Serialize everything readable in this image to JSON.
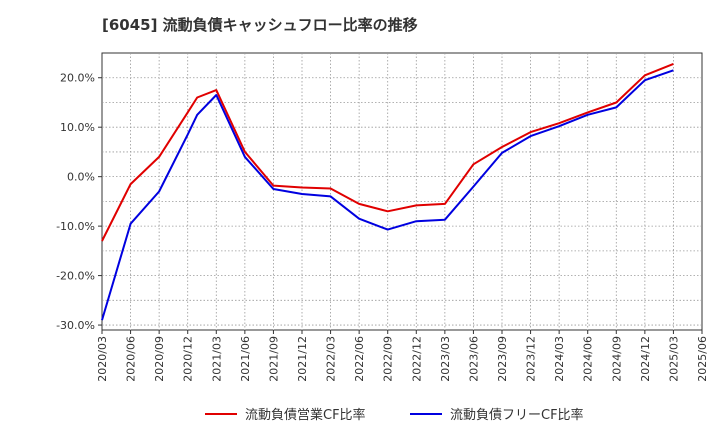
{
  "chart_data": {
    "type": "line",
    "title": "[6045]  流動負債キャッシュフロー比率の推移",
    "xlabel": "",
    "ylabel": "",
    "ylim": [
      -31,
      25
    ],
    "yticks": [
      -30,
      -20,
      -10,
      0,
      10,
      20
    ],
    "ytick_labels": [
      "-30.0%",
      "-20.0%",
      "-10.0%",
      "0.0%",
      "10.0%",
      "20.0%"
    ],
    "x_tick_labels": [
      "2020/03",
      "2020/06",
      "2020/09",
      "2020/12",
      "2021/03",
      "2021/06",
      "2021/09",
      "2021/12",
      "2022/03",
      "2022/06",
      "2022/09",
      "2022/12",
      "2023/03",
      "2023/06",
      "2023/09",
      "2023/12",
      "2024/03",
      "2024/06",
      "2024/09",
      "2024/12",
      "2025/03",
      "2025/06"
    ],
    "grid": true,
    "legend_position": "bottom",
    "x": [
      "2020/03",
      "2020/06",
      "2020/09",
      "2020/12",
      "2021/01",
      "2021/03",
      "2021/06",
      "2021/09",
      "2021/12",
      "2022/03",
      "2022/06",
      "2022/09",
      "2022/12",
      "2023/03",
      "2023/06",
      "2023/09",
      "2023/12",
      "2024/03",
      "2024/06",
      "2024/09",
      "2024/12",
      "2025/03"
    ],
    "series": [
      {
        "name": "流動負債営業CF比率",
        "color": "#e00000",
        "values": [
          -13.0,
          -1.5,
          4.0,
          13.0,
          16.0,
          17.5,
          5.0,
          -1.8,
          -2.2,
          -2.4,
          -5.5,
          -7.0,
          -5.8,
          -5.5,
          2.5,
          6.0,
          9.0,
          10.8,
          13.0,
          15.0,
          20.5,
          22.8
        ]
      },
      {
        "name": "流動負債フリーCF比率",
        "color": "#0000e0",
        "values": [
          -29.0,
          -9.5,
          -3.0,
          8.5,
          12.5,
          16.5,
          4.0,
          -2.5,
          -3.5,
          -4.0,
          -8.5,
          -10.7,
          -9.0,
          -8.7,
          -2.0,
          4.8,
          8.2,
          10.2,
          12.5,
          14.0,
          19.5,
          21.5
        ]
      }
    ]
  }
}
